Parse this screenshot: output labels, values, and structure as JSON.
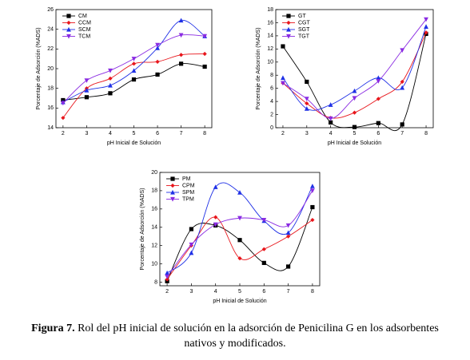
{
  "chart_data": [
    {
      "type": "line",
      "x_label": "pH Inicial de Solución",
      "y_label": "Porcentaje de Adsorción (%ADS)",
      "x": [
        2,
        3,
        4,
        5,
        6,
        7,
        8
      ],
      "xlim": [
        1.7,
        8.3
      ],
      "xticks": [
        2,
        3,
        4,
        5,
        6,
        7,
        8
      ],
      "ylim": [
        14,
        26
      ],
      "yticks": [
        14,
        16,
        18,
        20,
        22,
        24,
        26
      ],
      "legend": "upper left",
      "series": [
        {
          "name": "CM",
          "color": "#000000",
          "marker": "square",
          "values": [
            16.8,
            17.1,
            17.5,
            18.9,
            19.4,
            20.5,
            20.2
          ]
        },
        {
          "name": "CCM",
          "color": "#e8151b",
          "marker": "circle",
          "values": [
            15.0,
            18.0,
            19.0,
            20.5,
            20.7,
            21.4,
            21.5
          ]
        },
        {
          "name": "SCM",
          "color": "#1f30e6",
          "marker": "triangle-up",
          "values": [
            16.6,
            17.8,
            18.3,
            19.8,
            22.1,
            24.9,
            23.3
          ]
        },
        {
          "name": "TCM",
          "color": "#8a2be2",
          "marker": "triangle-down",
          "values": [
            16.5,
            18.8,
            19.8,
            21.0,
            22.4,
            23.4,
            23.3
          ]
        }
      ]
    },
    {
      "type": "line",
      "x_label": "pH Inicial de Solución",
      "y_label": "Porcentaje de Adsorción (%ADS)",
      "x": [
        2,
        3,
        4,
        5,
        6,
        7,
        8
      ],
      "xlim": [
        1.7,
        8.3
      ],
      "xticks": [
        2,
        3,
        4,
        5,
        6,
        7,
        8
      ],
      "ylim": [
        0,
        18
      ],
      "yticks": [
        0,
        2,
        4,
        6,
        8,
        10,
        12,
        14,
        16,
        18
      ],
      "legend": "upper left",
      "series": [
        {
          "name": "GT",
          "color": "#000000",
          "marker": "square",
          "values": [
            12.4,
            7.0,
            0.8,
            0.1,
            0.7,
            0.5,
            14.3
          ]
        },
        {
          "name": "CGT",
          "color": "#e8151b",
          "marker": "circle",
          "values": [
            6.8,
            3.7,
            1.5,
            2.3,
            4.4,
            7.0,
            14.5
          ]
        },
        {
          "name": "SGT",
          "color": "#1f30e6",
          "marker": "triangle-up",
          "values": [
            7.6,
            2.9,
            3.5,
            5.6,
            7.6,
            6.1,
            15.4
          ]
        },
        {
          "name": "TGT",
          "color": "#8a2be2",
          "marker": "triangle-down",
          "values": [
            6.8,
            4.4,
            1.4,
            4.5,
            7.1,
            11.8,
            16.5
          ]
        }
      ]
    },
    {
      "type": "line",
      "x_label": "pH Inicial de Solución",
      "y_label": "Porcentaje de Adsorción (%ADS)",
      "x": [
        2,
        3,
        4,
        5,
        6,
        7,
        8
      ],
      "xlim": [
        1.7,
        8.3
      ],
      "xticks": [
        2,
        3,
        4,
        5,
        6,
        7,
        8
      ],
      "ylim": [
        7.6,
        20
      ],
      "yticks": [
        8,
        10,
        12,
        14,
        16,
        18,
        20
      ],
      "legend": "upper left",
      "series": [
        {
          "name": "PM",
          "color": "#000000",
          "marker": "square",
          "values": [
            8.1,
            13.8,
            14.2,
            12.6,
            10.1,
            9.7,
            16.2
          ]
        },
        {
          "name": "CPM",
          "color": "#e8151b",
          "marker": "circle",
          "values": [
            8.3,
            12.0,
            15.1,
            10.6,
            11.6,
            13.0,
            14.8
          ]
        },
        {
          "name": "SPM",
          "color": "#1f30e6",
          "marker": "triangle-up",
          "values": [
            9.0,
            11.2,
            18.4,
            17.8,
            14.7,
            13.4,
            18.5
          ]
        },
        {
          "name": "TPM",
          "color": "#8a2be2",
          "marker": "triangle-down",
          "values": [
            8.6,
            12.1,
            14.3,
            15.0,
            14.8,
            14.2,
            18.0
          ]
        }
      ]
    }
  ],
  "caption": {
    "label": "Figura 7.",
    "text": "Rol del pH inicial de solución en la adsorción de Penicilina G en los adsorbentes",
    "text2": "nativos y modificados."
  }
}
